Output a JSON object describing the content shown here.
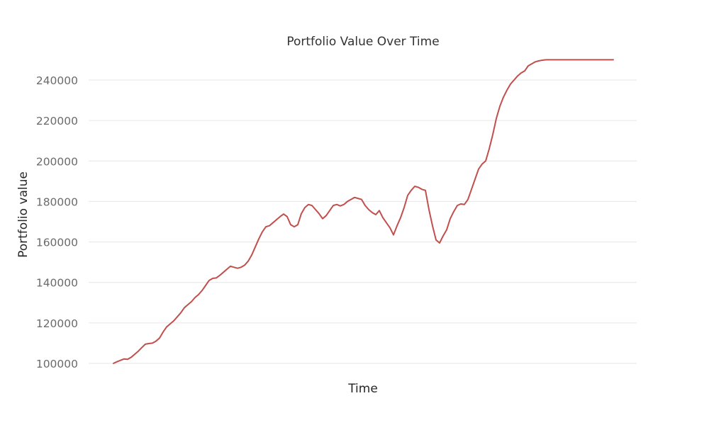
{
  "chart_data": {
    "type": "line",
    "title": "Portfolio Value Over Time",
    "xlabel": "Time",
    "ylabel": "Portfolio value",
    "grid": true,
    "legend": "none",
    "ylim": [
      95000,
      250000
    ],
    "yticks": [
      100000,
      120000,
      140000,
      160000,
      180000,
      200000,
      220000,
      240000
    ],
    "ytick_labels": [
      "100000",
      "120000",
      "140000",
      "160000",
      "180000",
      "200000",
      "220000",
      "240000"
    ],
    "line_color": "#c0504d",
    "series": [
      {
        "x": [
          0,
          5,
          10,
          15,
          20,
          25,
          30,
          35,
          40,
          45,
          50,
          55,
          60,
          65,
          70,
          75,
          80,
          85,
          90,
          95,
          100,
          105,
          110,
          115,
          120,
          125,
          130,
          135,
          140,
          145,
          150,
          155,
          160,
          165,
          170,
          175,
          180,
          185,
          190,
          195,
          200,
          205,
          210,
          215,
          220,
          225,
          230,
          235,
          240,
          245,
          250,
          255,
          260,
          265,
          270,
          275,
          280,
          285,
          290,
          295,
          300,
          305,
          310,
          315,
          320,
          325,
          330,
          335,
          340,
          345,
          350,
          355,
          360,
          365,
          370,
          375,
          380,
          385,
          390,
          395,
          400,
          405,
          410,
          415,
          420,
          425,
          430,
          435,
          440,
          445,
          450,
          455,
          460,
          465,
          470,
          475,
          480,
          485,
          490,
          495,
          500,
          505,
          510,
          515,
          520,
          525,
          530,
          535,
          540,
          545,
          550,
          555,
          560,
          565,
          570,
          575,
          580,
          585,
          590,
          595,
          600,
          605,
          610,
          615,
          620,
          625,
          630,
          635,
          640,
          645,
          650,
          655,
          660,
          665,
          670,
          675,
          680,
          685,
          690,
          695,
          700,
          705
        ],
        "values": [
          100000,
          100800,
          101500,
          102200,
          102000,
          103000,
          104500,
          106000,
          107800,
          109500,
          109800,
          110000,
          111000,
          112500,
          115500,
          118000,
          119500,
          121000,
          123000,
          125000,
          127500,
          129000,
          130500,
          132500,
          134000,
          136000,
          138500,
          141000,
          142000,
          142200,
          143500,
          145000,
          146500,
          148000,
          147500,
          147000,
          147500,
          148500,
          150500,
          153500,
          157500,
          161500,
          165000,
          167500,
          168000,
          169500,
          171000,
          172500,
          173800,
          172500,
          168500,
          167500,
          168500,
          174000,
          177000,
          178500,
          178000,
          176000,
          174000,
          171500,
          173000,
          175500,
          178000,
          178500,
          177800,
          178500,
          180000,
          181000,
          182000,
          181500,
          181000,
          178000,
          176000,
          174500,
          173500,
          175500,
          172000,
          169500,
          167000,
          163500,
          168000,
          172000,
          177000,
          183000,
          185500,
          187500,
          187000,
          186000,
          185500,
          176000,
          168000,
          161000,
          159500,
          163000,
          166000,
          171500,
          175000,
          178000,
          178800,
          178500,
          181000,
          186000,
          191000,
          196000,
          198500,
          200000,
          206000,
          213000,
          221000,
          227000,
          231500,
          235000,
          238000,
          240000,
          242000,
          243500,
          244500,
          247000,
          248000,
          249000,
          249500,
          249800,
          250000,
          250000,
          250000,
          250000,
          250000,
          250000,
          250000,
          250000,
          250000,
          250000,
          250000,
          250000,
          250000,
          250000,
          250000,
          250000,
          250000,
          250000,
          250000,
          250000
        ]
      }
    ]
  }
}
